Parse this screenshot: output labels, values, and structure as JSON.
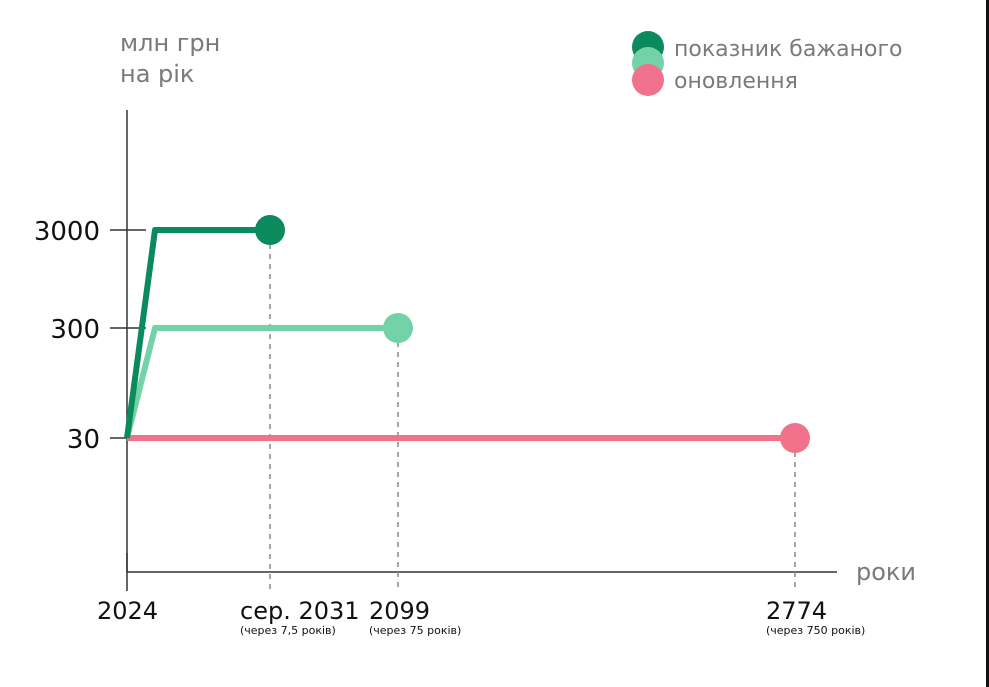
{
  "chart_data": {
    "type": "line",
    "ylabel_line1": "млн грн",
    "ylabel_line2": "на рік",
    "xlabel": "роки",
    "y_scale": "categorical-log",
    "y_ticks": [
      {
        "label": "3000",
        "value": 3000
      },
      {
        "label": "300",
        "value": 300
      },
      {
        "label": "30",
        "value": 30
      }
    ],
    "x_ticks": [
      {
        "label": "2024",
        "sub": "",
        "value": 2024
      },
      {
        "label": "сер. 2031",
        "sub": "(через 7,5 років)",
        "value": 2031.5
      },
      {
        "label": "2099",
        "sub": "(через 75 років)",
        "value": 2099
      },
      {
        "label": "2774",
        "sub": "(через 750 років)",
        "value": 2774
      }
    ],
    "legend": [
      {
        "label": "показник бажаного",
        "colors": [
          "#0b8a5c",
          "#74d2a8"
        ]
      },
      {
        "label": "оновлення",
        "colors": [
          "#f0738b"
        ]
      }
    ],
    "legend_position": "top-right",
    "series": [
      {
        "color": "#0b8a5c",
        "points": [
          [
            2024,
            30
          ],
          [
            2025,
            3000
          ],
          [
            2031.5,
            3000
          ]
        ],
        "end_marker": true
      },
      {
        "color": "#74d2a8",
        "points": [
          [
            2024,
            30
          ],
          [
            2025,
            300
          ],
          [
            2099,
            300
          ]
        ],
        "end_marker": true
      },
      {
        "color": "#f0738b",
        "points": [
          [
            2024,
            30
          ],
          [
            2774,
            30
          ]
        ],
        "end_marker": true
      }
    ]
  }
}
